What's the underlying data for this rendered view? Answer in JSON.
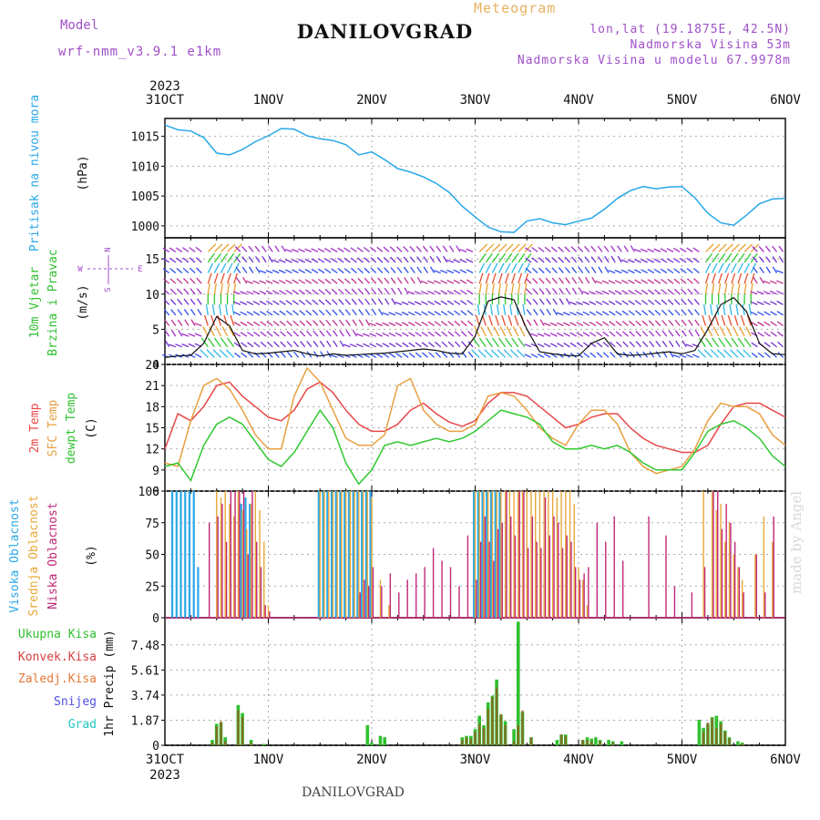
{
  "header": {
    "title": "DANILOVGRAD",
    "meteogram": "Meteogram",
    "model_label": "Model",
    "model_name": "wrf-nmm_v3.9.1 e1km",
    "lonlat": "lon,lat (19.1875E, 42.5N)",
    "elev": "Nadmorska Visina 53m",
    "elev_model": "Nadmorska Visina u modelu 67.9978m"
  },
  "footer": {
    "name": "DANILOVGRAD",
    "watermark": "made by Angel"
  },
  "axes": {
    "year": "2023",
    "x_ticks": [
      "31OCT",
      "1NOV",
      "2NOV",
      "3NOV",
      "4NOV",
      "5NOV",
      "6NOV"
    ],
    "x_range_hours": [
      0,
      144
    ]
  },
  "colors": {
    "pressure": "#29a8e8",
    "temp2m": "#e84848",
    "sfc": "#e8a040",
    "dewpt": "#30c830",
    "cloud_high": "#29a8e8",
    "cloud_mid": "#e8a838",
    "cloud_low": "#c02878",
    "precip_total": "#30c030",
    "precip_conv": "#d84040",
    "precip_frozen": "#e87838",
    "snow": "#5050e0",
    "hail": "#20c8c8",
    "wind_speed": "#111111",
    "grid": "#aaaaaa"
  },
  "panels": {
    "pressure": {
      "label": "Pritisak na nivou mora",
      "unit": "(hPa)"
    },
    "wind": {
      "label1": "10m Vjetar",
      "label2": "Brzina i Pravac",
      "unit": "(m/s)",
      "compass": {
        "n": "N",
        "s": "S",
        "e": "E",
        "w": "W"
      }
    },
    "temp": {
      "label1": "2m Temp",
      "label2": "SFC Temp",
      "label3": "dewpt Temp",
      "unit": "(C)"
    },
    "cloud": {
      "label1": "Visoka Oblacnost",
      "label2": "Srednja Oblacnost",
      "label3": "Niska Oblacnost",
      "unit": "(%)"
    },
    "precip": {
      "label1": "Ukupna Kisa",
      "label2": "Konvek.Kisa",
      "label3": "Zaledj.Kisa",
      "label4": "Snijeg",
      "label5": "Grad",
      "unit": "1hr Precip (mm)"
    }
  },
  "chart_data": [
    {
      "type": "line",
      "name": "pressure",
      "ylim": [
        998,
        1018
      ],
      "yticks": [
        1000,
        1005,
        1010,
        1015
      ],
      "x": [
        0,
        3,
        6,
        9,
        12,
        15,
        18,
        21,
        24,
        27,
        30,
        33,
        36,
        39,
        42,
        45,
        48,
        51,
        54,
        57,
        60,
        63,
        66,
        69,
        72,
        75,
        78,
        81,
        84,
        87,
        90,
        93,
        96,
        99,
        102,
        105,
        108,
        111,
        114,
        117,
        120,
        123,
        126,
        129,
        132,
        135,
        138,
        141,
        144
      ],
      "series": [
        {
          "key": "slp",
          "values": [
            1016.9,
            1016.1,
            1015.9,
            1014.8,
            1012.2,
            1011.9,
            1012.8,
            1014.1,
            1015.1,
            1016.3,
            1016.2,
            1015.1,
            1014.6,
            1014.3,
            1013.6,
            1011.9,
            1012.4,
            1011.1,
            1009.6,
            1009.0,
            1008.2,
            1007.1,
            1005.6,
            1003.3,
            1001.5,
            999.8,
            999.0,
            998.9,
            1000.8,
            1001.2,
            1000.5,
            1000.2,
            1000.8,
            1001.3,
            1002.8,
            1004.6,
            1005.9,
            1006.6,
            1006.2,
            1006.5,
            1006.6,
            1004.7,
            1002.1,
            1000.5,
            1000.1,
            1001.8,
            1003.7,
            1004.5,
            1004.6
          ]
        }
      ]
    },
    {
      "type": "line",
      "name": "wind",
      "ylim": [
        0,
        18
      ],
      "yticks": [
        0,
        5,
        10,
        15
      ],
      "x": [
        0,
        3,
        6,
        9,
        12,
        15,
        18,
        21,
        24,
        27,
        30,
        33,
        36,
        39,
        42,
        45,
        48,
        51,
        54,
        57,
        60,
        63,
        66,
        69,
        72,
        75,
        78,
        81,
        84,
        87,
        90,
        93,
        96,
        99,
        102,
        105,
        108,
        111,
        114,
        117,
        120,
        123,
        126,
        129,
        132,
        135,
        138,
        141,
        144
      ],
      "series": [
        {
          "key": "speed",
          "values": [
            1.0,
            1.2,
            1.3,
            3.0,
            6.8,
            5.5,
            2.0,
            1.5,
            1.6,
            1.8,
            2.0,
            1.5,
            1.2,
            1.5,
            1.3,
            1.4,
            1.5,
            1.6,
            1.8,
            2.0,
            2.2,
            2.0,
            1.6,
            1.5,
            4.0,
            9.0,
            9.6,
            9.2,
            5.0,
            1.8,
            1.5,
            1.3,
            1.2,
            3.0,
            3.8,
            1.5,
            1.3,
            1.4,
            1.6,
            1.8,
            1.5,
            2.0,
            5.0,
            8.5,
            9.5,
            7.5,
            3.0,
            1.5,
            1.4
          ]
        }
      ]
    },
    {
      "type": "line",
      "name": "temperature",
      "ylim": [
        6,
        24
      ],
      "yticks": [
        6,
        9,
        12,
        15,
        18,
        21,
        24
      ],
      "x": [
        0,
        3,
        6,
        9,
        12,
        15,
        18,
        21,
        24,
        27,
        30,
        33,
        36,
        39,
        42,
        45,
        48,
        51,
        54,
        57,
        60,
        63,
        66,
        69,
        72,
        75,
        78,
        81,
        84,
        87,
        90,
        93,
        96,
        99,
        102,
        105,
        108,
        111,
        114,
        117,
        120,
        123,
        126,
        129,
        132,
        135,
        138,
        141,
        144
      ],
      "series": [
        {
          "key": "t2m",
          "name": "2m Temp",
          "values": [
            12.0,
            17.0,
            16.0,
            18.0,
            21.0,
            21.5,
            19.5,
            18.0,
            16.5,
            16.0,
            17.5,
            20.5,
            21.5,
            20.0,
            17.5,
            15.5,
            14.5,
            14.5,
            15.5,
            17.5,
            18.5,
            17.0,
            15.8,
            15.2,
            16.0,
            18.5,
            20.0,
            20.0,
            19.5,
            18.0,
            16.5,
            15.0,
            15.5,
            16.5,
            17.0,
            17.0,
            15.0,
            13.5,
            12.5,
            12.0,
            11.5,
            11.5,
            12.5,
            15.5,
            18.0,
            18.5,
            18.5,
            17.5,
            16.5
          ]
        },
        {
          "key": "sfc",
          "name": "SFC Temp",
          "values": [
            10.0,
            9.5,
            16.0,
            21.0,
            22.0,
            20.5,
            17.5,
            14.0,
            12.0,
            12.0,
            19.5,
            23.5,
            21.5,
            17.5,
            13.5,
            12.5,
            12.5,
            14.0,
            21.0,
            22.0,
            17.5,
            15.5,
            14.5,
            14.5,
            15.5,
            19.5,
            20.0,
            19.5,
            17.5,
            15.0,
            13.5,
            12.5,
            15.5,
            17.5,
            17.5,
            15.5,
            11.5,
            9.5,
            8.5,
            9.0,
            9.5,
            12.0,
            16.0,
            18.5,
            18.0,
            18.0,
            17.0,
            14.0,
            12.5
          ]
        },
        {
          "key": "dewpt",
          "name": "dewpt Temp",
          "values": [
            9.5,
            10.0,
            7.5,
            12.5,
            15.5,
            16.5,
            15.5,
            13.0,
            10.5,
            9.5,
            11.5,
            14.5,
            17.5,
            15.0,
            10.0,
            7.0,
            9.0,
            12.5,
            13.0,
            12.5,
            13.0,
            13.5,
            13.0,
            13.5,
            14.5,
            16.0,
            17.5,
            17.0,
            16.5,
            15.5,
            13.0,
            12.0,
            12.0,
            12.5,
            12.0,
            12.5,
            11.5,
            10.0,
            9.0,
            9.0,
            9.0,
            11.5,
            14.5,
            15.5,
            16.0,
            15.0,
            13.5,
            11.0,
            9.5
          ]
        }
      ]
    },
    {
      "type": "bar",
      "name": "cloud",
      "ylim": [
        0,
        100
      ],
      "yticks": [
        0,
        25,
        50,
        75,
        100
      ],
      "hours": [
        2,
        3,
        4,
        5,
        6,
        7,
        8,
        10,
        12,
        13,
        14,
        15,
        16,
        17,
        18,
        19,
        20,
        21,
        22,
        23,
        24,
        25,
        26,
        28,
        30,
        34,
        36,
        37,
        38,
        39,
        40,
        41,
        42,
        43,
        44,
        45,
        46,
        47,
        48,
        50,
        52,
        54,
        56,
        58,
        60,
        62,
        64,
        66,
        68,
        70,
        72,
        73,
        74,
        75,
        76,
        77,
        78,
        79,
        80,
        81,
        82,
        83,
        84,
        85,
        86,
        87,
        88,
        89,
        90,
        91,
        92,
        93,
        94,
        95,
        96,
        97,
        98,
        100,
        102,
        104,
        106,
        112,
        116,
        118,
        122,
        125,
        127,
        128,
        129,
        130,
        131,
        132,
        133,
        134,
        137,
        139,
        141
      ],
      "series": [
        {
          "key": "high",
          "name": "Visoka Oblacnost",
          "values": [
            100,
            100,
            100,
            100,
            100,
            100,
            40,
            0,
            0,
            0,
            0,
            0,
            0,
            0,
            90,
            95,
            90,
            0,
            0,
            0,
            0,
            0,
            0,
            0,
            0,
            0,
            100,
            100,
            100,
            100,
            100,
            100,
            100,
            100,
            100,
            100,
            100,
            100,
            100,
            0,
            0,
            0,
            0,
            0,
            0,
            0,
            0,
            0,
            0,
            0,
            100,
            100,
            100,
            100,
            100,
            100,
            100,
            0,
            0,
            0,
            0,
            0,
            0,
            0,
            0,
            0,
            0,
            0,
            0,
            0,
            0,
            0,
            0,
            0,
            0,
            0,
            0,
            0,
            0,
            0,
            0,
            0,
            0,
            0,
            0,
            0,
            0,
            0,
            0,
            0,
            0,
            0,
            0,
            0,
            0,
            0,
            0
          ]
        },
        {
          "key": "mid",
          "name": "Srednja Oblacnost",
          "values": [
            0,
            0,
            0,
            0,
            0,
            0,
            0,
            0,
            100,
            95,
            100,
            90,
            80,
            100,
            85,
            70,
            90,
            100,
            85,
            60,
            10,
            0,
            0,
            0,
            0,
            0,
            100,
            100,
            100,
            100,
            100,
            100,
            100,
            100,
            100,
            100,
            100,
            100,
            95,
            30,
            10,
            0,
            0,
            0,
            0,
            0,
            0,
            0,
            0,
            0,
            100,
            100,
            100,
            100,
            100,
            100,
            100,
            100,
            100,
            100,
            100,
            100,
            100,
            100,
            100,
            100,
            100,
            100,
            100,
            95,
            100,
            100,
            100,
            90,
            40,
            30,
            10,
            0,
            0,
            0,
            0,
            0,
            0,
            0,
            0,
            100,
            100,
            85,
            90,
            60,
            75,
            50,
            40,
            30,
            50,
            80,
            60
          ]
        },
        {
          "key": "low",
          "name": "Niska Oblacnost",
          "values": [
            0,
            0,
            0,
            0,
            0,
            0,
            0,
            75,
            80,
            90,
            60,
            100,
            100,
            100,
            100,
            50,
            100,
            60,
            40,
            10,
            5,
            0,
            0,
            0,
            0,
            0,
            0,
            0,
            0,
            0,
            0,
            0,
            0,
            0,
            0,
            20,
            30,
            25,
            40,
            25,
            35,
            20,
            30,
            35,
            40,
            55,
            45,
            40,
            25,
            65,
            30,
            60,
            80,
            60,
            45,
            70,
            75,
            100,
            80,
            65,
            100,
            100,
            55,
            80,
            60,
            55,
            95,
            65,
            80,
            75,
            55,
            65,
            60,
            40,
            30,
            35,
            40,
            75,
            60,
            80,
            45,
            80,
            65,
            25,
            20,
            40,
            100,
            100,
            70,
            90,
            75,
            60,
            40,
            20,
            50,
            20,
            80
          ]
        }
      ]
    },
    {
      "type": "bar",
      "name": "precip",
      "ylim": [
        0,
        9.5
      ],
      "yticks": [
        0,
        1.87,
        3.74,
        5.61,
        7.48
      ],
      "hours": [
        11,
        12,
        13,
        14,
        17,
        18,
        20,
        23,
        47,
        48,
        50,
        51,
        69,
        70,
        71,
        72,
        73,
        74,
        75,
        76,
        77,
        78,
        79,
        81,
        82,
        83,
        85,
        91,
        92,
        93,
        97,
        98,
        99,
        100,
        101,
        103,
        104,
        106,
        124,
        125,
        126,
        127,
        128,
        129,
        130,
        131,
        133,
        134
      ],
      "series": [
        {
          "key": "total",
          "name": "Ukupna Kisa",
          "values": [
            0.4,
            1.6,
            1.7,
            0.6,
            3.0,
            2.4,
            0.4,
            0.1,
            1.5,
            0.2,
            0.7,
            0.6,
            0.6,
            0.7,
            0.7,
            1.2,
            2.2,
            1.5,
            3.2,
            3.7,
            4.9,
            2.3,
            1.8,
            1.2,
            9.2,
            2.5,
            0.6,
            0.4,
            0.8,
            0.8,
            0.4,
            0.6,
            0.5,
            0.6,
            0.4,
            0.4,
            0.3,
            0.3,
            1.9,
            1.3,
            1.6,
            2.1,
            2.2,
            1.8,
            1.1,
            0.6,
            0.3,
            0.2
          ]
        },
        {
          "key": "conv",
          "name": "Konvek.Kisa",
          "values": [
            0.2,
            1.4,
            1.8,
            0.3,
            2.6,
            2.1,
            0.2,
            0.0,
            0.0,
            0.0,
            0.0,
            0.0,
            0.4,
            0.6,
            0.5,
            1.0,
            1.6,
            1.3,
            2.7,
            3.6,
            4.3,
            2.3,
            1.5,
            0.3,
            1.5,
            2.6,
            0.6,
            0.0,
            0.8,
            0.7,
            0.4,
            0.4,
            0.3,
            0.0,
            0.3,
            0.0,
            0.2,
            0.0,
            0.0,
            1.0,
            1.7,
            2.0,
            1.3,
            1.6,
            1.0,
            0.5,
            0.0,
            0.1
          ]
        }
      ]
    }
  ]
}
